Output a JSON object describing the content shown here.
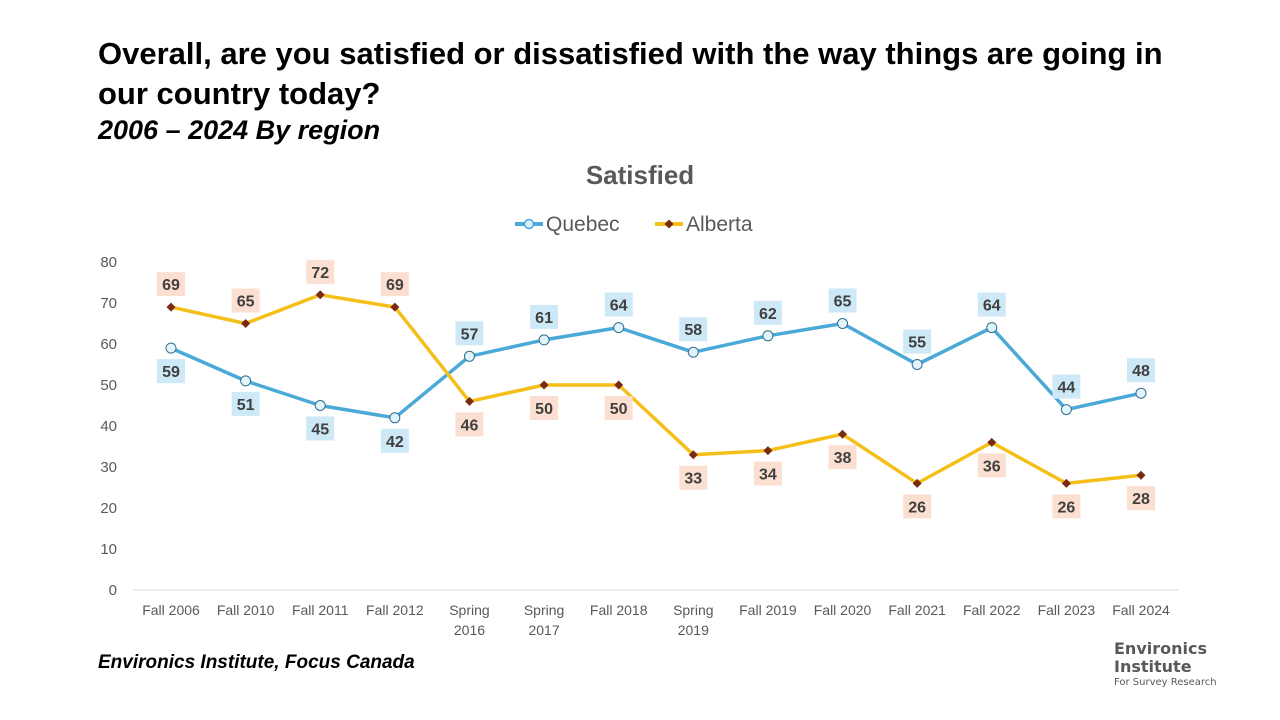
{
  "title": "Overall, are you satisfied or dissatisfied with the way things are going in our country today?",
  "subtitle": "2006 – 2024  By region",
  "source": "Environics Institute, Focus Canada",
  "logo": {
    "line1": "Environics",
    "line2": "Institute",
    "line3": "For Survey Research"
  },
  "chart_data": {
    "type": "line",
    "title": "Satisfied",
    "xlabel": "",
    "ylabel": "",
    "ylim": [
      0,
      80
    ],
    "yticks": [
      "0",
      "10",
      "20",
      "30",
      "40",
      "50",
      "60",
      "70",
      "80"
    ],
    "grid": false,
    "legend_position": "top-center",
    "categories": [
      [
        "Fall 2006"
      ],
      [
        "Fall 2010"
      ],
      [
        "Fall 2011"
      ],
      [
        "Fall 2012"
      ],
      [
        "Spring",
        "2016"
      ],
      [
        "Spring",
        "2017"
      ],
      [
        "Fall 2018"
      ],
      [
        "Spring",
        "2019"
      ],
      [
        "Fall 2019"
      ],
      [
        "Fall 2020"
      ],
      [
        "Fall 2021"
      ],
      [
        "Fall 2022"
      ],
      [
        "Fall 2023"
      ],
      [
        "Fall 2024"
      ]
    ],
    "series": [
      {
        "name": "Quebec",
        "color": "#4ba9d8",
        "label_bg": "#cde8f6",
        "values": [
          59,
          51,
          45,
          42,
          57,
          61,
          64,
          58,
          62,
          65,
          55,
          64,
          44,
          48
        ]
      },
      {
        "name": "Alberta",
        "color": "#f5bf1a",
        "marker_color": "#7a2a10",
        "label_bg": "#fbe0d2",
        "values": [
          69,
          65,
          72,
          69,
          46,
          50,
          50,
          33,
          34,
          38,
          26,
          36,
          26,
          28
        ]
      }
    ]
  }
}
